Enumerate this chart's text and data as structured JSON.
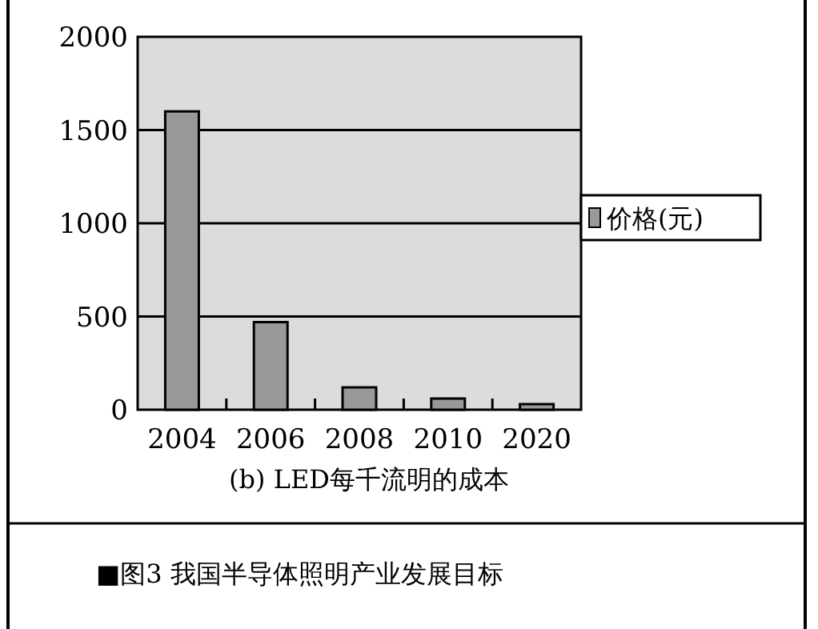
{
  "chart_data": {
    "type": "bar",
    "xlabel": "(b) LED每千流明的成本",
    "categories": [
      "2004",
      "2006",
      "2008",
      "2010",
      "2020"
    ],
    "series": [
      {
        "name": "价格(元)",
        "color": "#999999",
        "values": [
          1600,
          470,
          120,
          60,
          30
        ]
      }
    ],
    "ylim": [
      0,
      2000
    ],
    "yticks": [
      0,
      500,
      1000,
      1500,
      2000
    ],
    "grid": "y",
    "legend": "right",
    "annotations": [
      "■图3 我国半导体照明产业发展目标"
    ]
  }
}
